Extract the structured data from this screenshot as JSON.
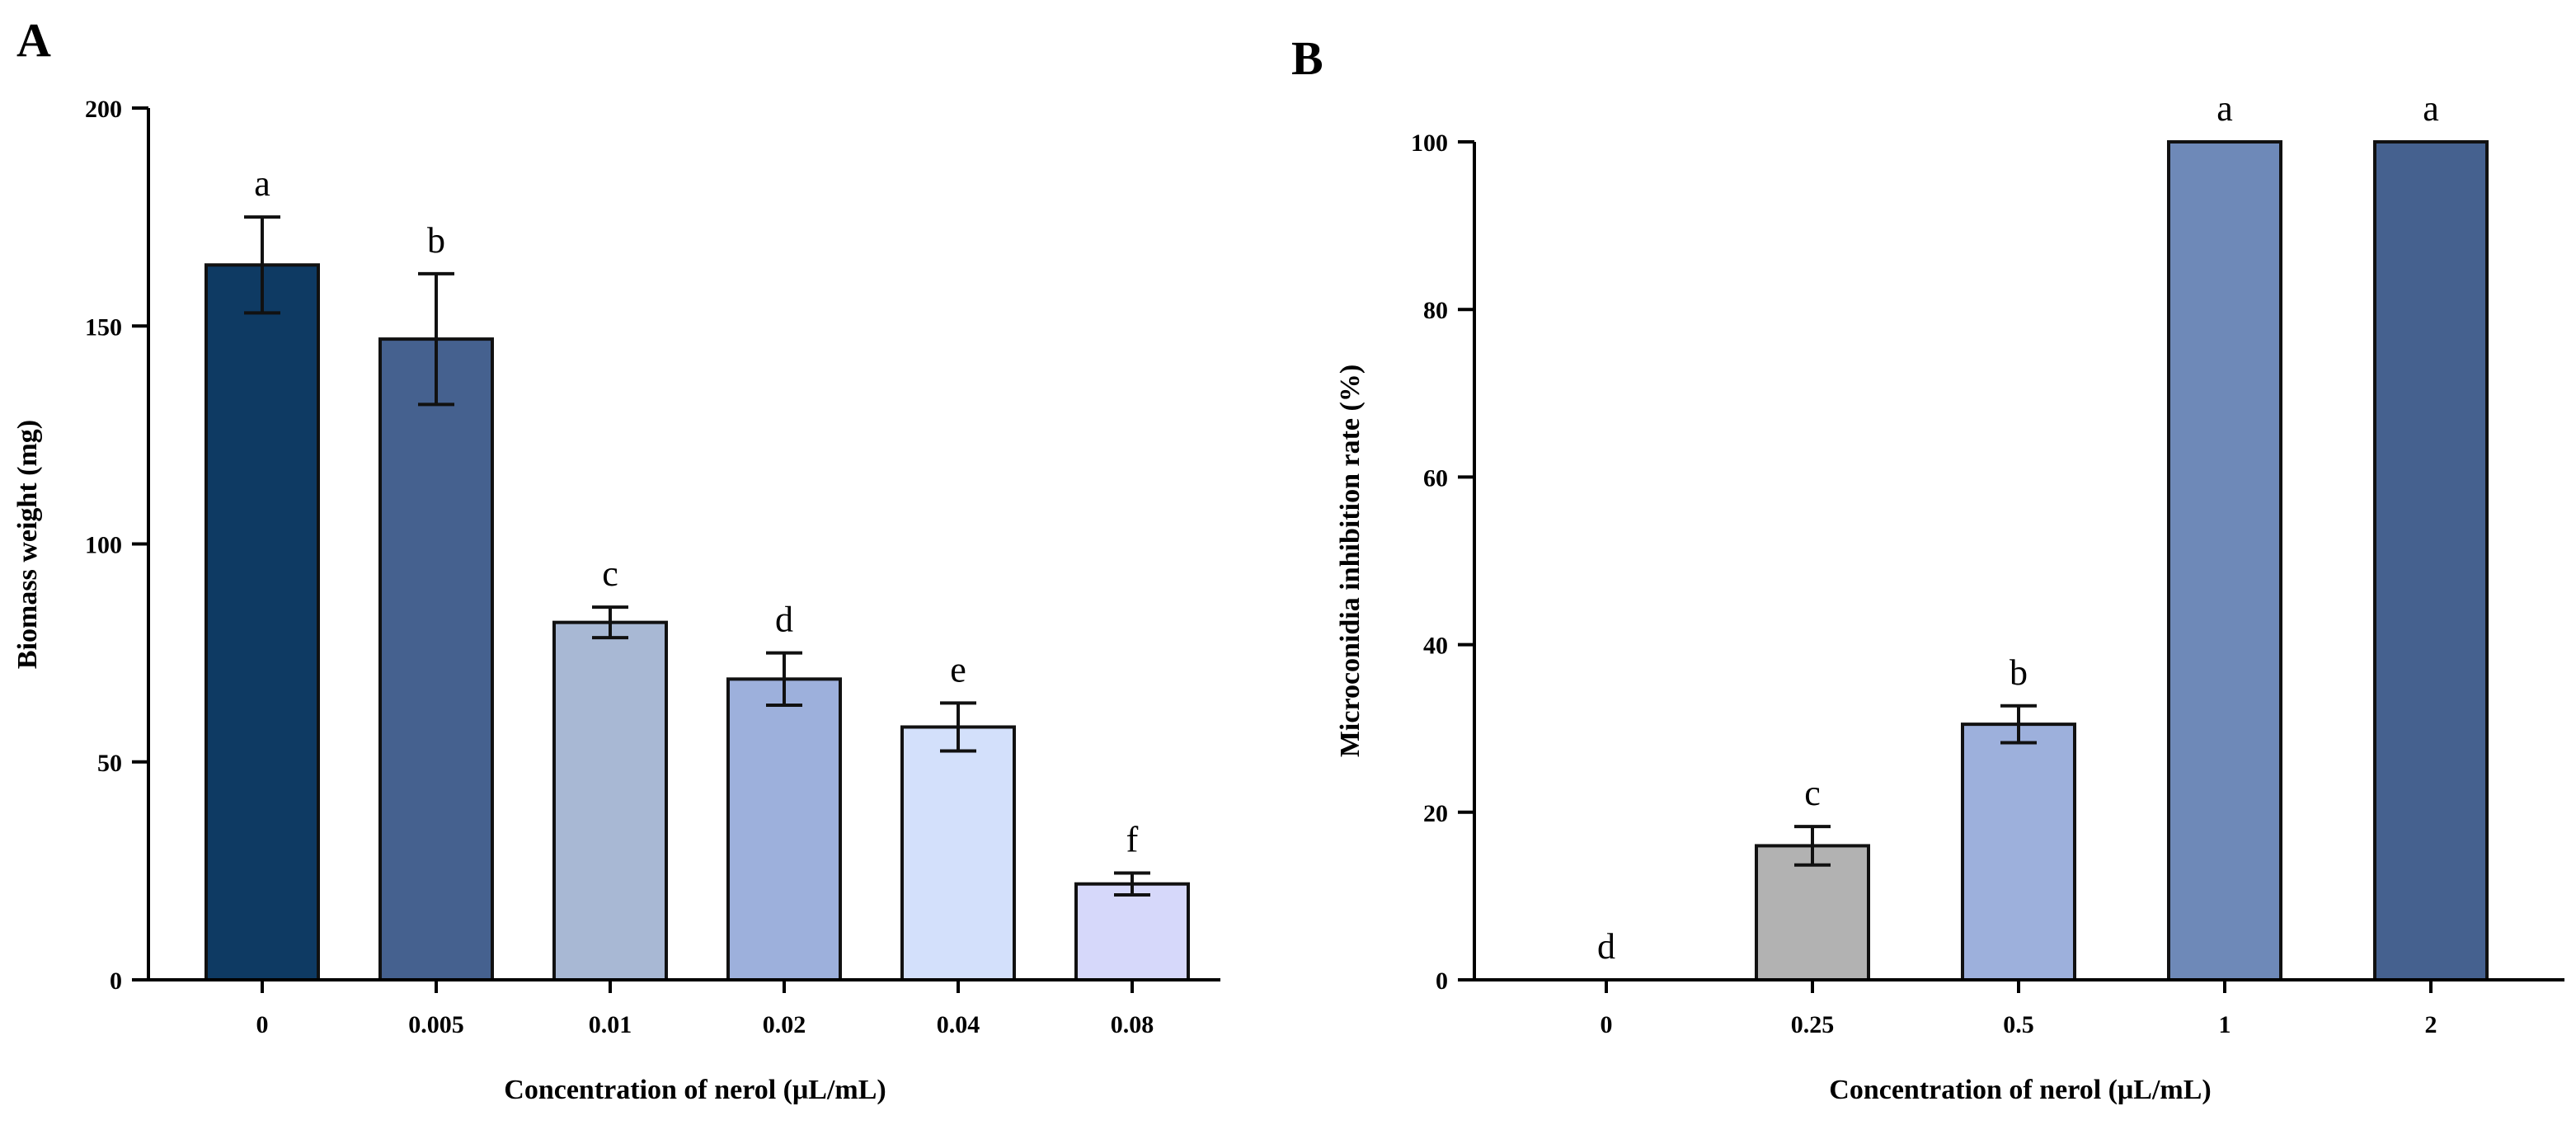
{
  "chart_data": [
    {
      "panel": "A",
      "type": "bar",
      "xlabel": "Concentration of nerol (μL/mL)",
      "ylabel": "Biomass weight (mg)",
      "ylim": [
        0,
        200
      ],
      "yticks": [
        0,
        50,
        100,
        150,
        200
      ],
      "categories": [
        "0",
        "0.005",
        "0.01",
        "0.02",
        "0.04",
        "0.08"
      ],
      "values": [
        164,
        147,
        82,
        69,
        58,
        22
      ],
      "errors": [
        11,
        15,
        3.5,
        6,
        5.5,
        2.5
      ],
      "letters": [
        "a",
        "b",
        "c",
        "d",
        "e",
        "f"
      ],
      "colors": [
        "#0e3a63",
        "#45618f",
        "#a8b8d4",
        "#9db0dc",
        "#d3e0fb",
        "#d6d8fa"
      ]
    },
    {
      "panel": "B",
      "type": "bar",
      "xlabel": "Concentration of nerol (μL/mL)",
      "ylabel": "Microconidia inhibition rate (%)",
      "ylim": [
        0,
        100
      ],
      "yticks": [
        0,
        20,
        40,
        60,
        80,
        100
      ],
      "categories": [
        "0",
        "0.25",
        "0.5",
        "1",
        "2"
      ],
      "values": [
        0,
        16,
        30.5,
        100,
        100
      ],
      "errors": [
        0,
        2.3,
        2.2,
        0,
        0
      ],
      "letters": [
        "d",
        "c",
        "b",
        "a",
        "a"
      ],
      "colors": [
        "#ffffff",
        "#b2b2b2",
        "#9db0dc",
        "#6e89b8",
        "#45618f"
      ]
    }
  ]
}
